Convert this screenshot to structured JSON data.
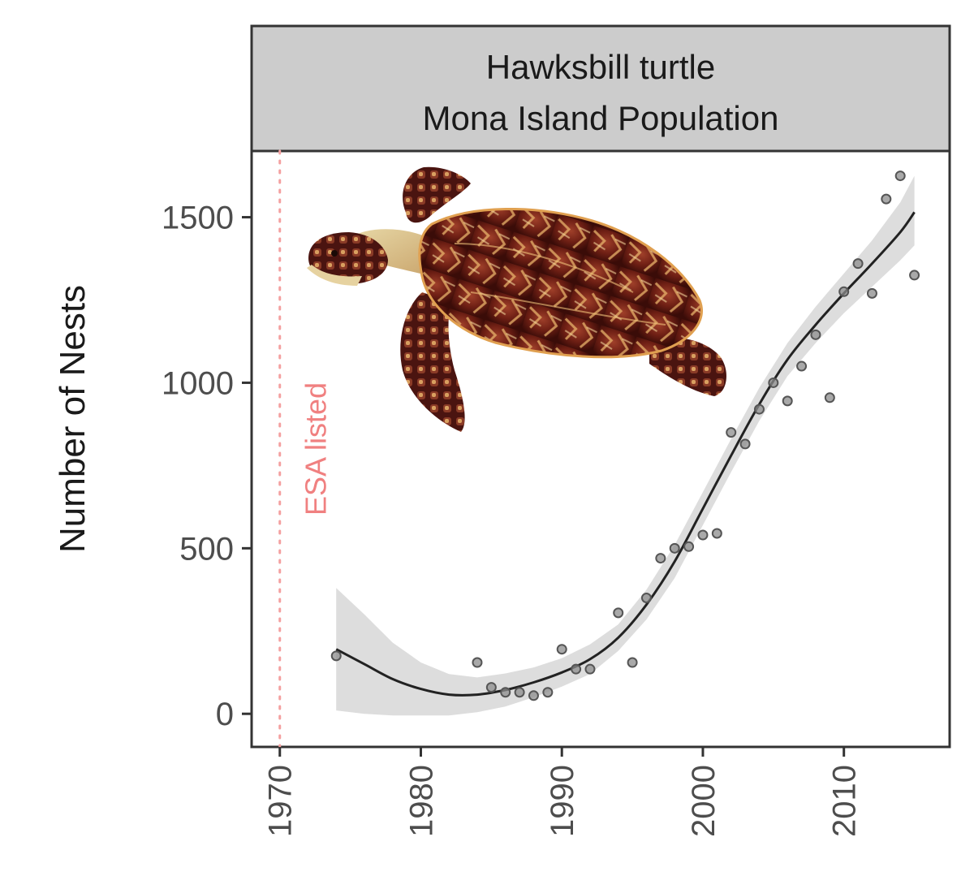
{
  "chart_data": {
    "type": "scatter",
    "title": [
      "Hawksbill turtle",
      "Mona Island Population"
    ],
    "xlabel": "",
    "ylabel": "Number of Nests",
    "xlim": [
      1968,
      2017.5
    ],
    "ylim": [
      -100,
      1700
    ],
    "x_ticks": [
      1970,
      1980,
      1990,
      2000,
      2010
    ],
    "y_ticks": [
      0,
      500,
      1000,
      1500
    ],
    "grid": false,
    "points": {
      "name": "Observed nests",
      "x": [
        1974,
        1984,
        1985,
        1986,
        1987,
        1988,
        1989,
        1990,
        1991,
        1992,
        1994,
        1995,
        1996,
        1997,
        1998,
        1999,
        2000,
        2001,
        2002,
        2003,
        2004,
        2005,
        2006,
        2007,
        2008,
        2009,
        2010,
        2011,
        2012,
        2013,
        2014,
        2015
      ],
      "y": [
        175,
        155,
        80,
        65,
        65,
        55,
        65,
        195,
        135,
        135,
        305,
        155,
        350,
        470,
        500,
        505,
        540,
        545,
        850,
        815,
        920,
        1000,
        945,
        1050,
        1145,
        955,
        1275,
        1360,
        1270,
        1555,
        1625,
        1325
      ]
    },
    "smooth": {
      "name": "Loess fit",
      "x": [
        1974,
        1976,
        1978,
        1980,
        1982,
        1984,
        1986,
        1988,
        1990,
        1992,
        1994,
        1996,
        1998,
        2000,
        2002,
        2004,
        2006,
        2008,
        2010,
        2012,
        2014,
        2015
      ],
      "y": [
        195,
        150,
        105,
        75,
        58,
        58,
        72,
        95,
        125,
        165,
        230,
        330,
        460,
        620,
        780,
        935,
        1070,
        1175,
        1270,
        1360,
        1455,
        1515
      ],
      "ci_lower": [
        10,
        0,
        -5,
        -5,
        -5,
        5,
        22,
        50,
        82,
        120,
        190,
        285,
        410,
        570,
        730,
        885,
        1020,
        1120,
        1210,
        1290,
        1370,
        1415
      ],
      "ci_upper": [
        380,
        300,
        215,
        155,
        120,
        110,
        122,
        140,
        168,
        210,
        270,
        375,
        510,
        670,
        830,
        985,
        1120,
        1230,
        1330,
        1430,
        1545,
        1625
      ]
    },
    "annotations": [
      {
        "type": "vline",
        "x": 1970,
        "label": "ESA listed",
        "color": "#f4a0a0"
      }
    ],
    "image": {
      "icon": "hawksbill-turtle-icon",
      "description": "Hawksbill turtle photo"
    },
    "colors": {
      "strip_bg": "#cccccc",
      "ribbon": "#d9d9d9",
      "line": "#222222",
      "point_fill": "#8c8c8c",
      "point_stroke": "#555555",
      "annotation_text": "#f08080"
    }
  }
}
